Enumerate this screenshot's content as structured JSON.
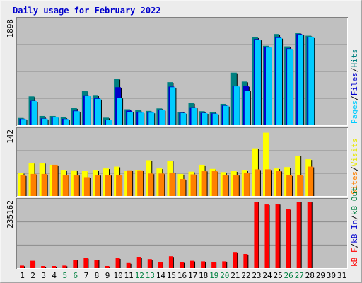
{
  "title": "Daily usage for February 2022",
  "colors": {
    "hits": "#00ccff",
    "files": "#0000cc",
    "pages": "#008080",
    "visits": "#ffff00",
    "sites": "#ff8000",
    "kbytes": "#ff0000",
    "panel_bg": "#c0c0c0",
    "frame_bg": "#ececec",
    "grid": "#8c8c8c",
    "weekend_day": "#008040",
    "weekday_day": "#000000"
  },
  "axis_labels": {
    "hits_max": "1898",
    "visits_max": "142",
    "kbytes_max": "235162"
  },
  "legends": {
    "hits": [
      {
        "text": "Pages",
        "color": "#00ccff"
      },
      {
        "text": "/",
        "color": "#000000"
      },
      {
        "text": "Files",
        "color": "#0000cc"
      },
      {
        "text": "/",
        "color": "#000000"
      },
      {
        "text": "Hits",
        "color": "#008080"
      }
    ],
    "visits": [
      {
        "text": "Sites",
        "color": "#ff8000"
      },
      {
        "text": "/",
        "color": "#000000"
      },
      {
        "text": "Visits",
        "color": "#e6e600"
      }
    ],
    "kbytes": [
      {
        "text": "kB F",
        "color": "#ff0000"
      },
      {
        "text": "/",
        "color": "#000000"
      },
      {
        "text": "kB In",
        "color": "#0000cc"
      },
      {
        "text": "/",
        "color": "#000000"
      },
      {
        "text": "kB Out",
        "color": "#008040"
      }
    ]
  },
  "chart_data": {
    "type": "bar",
    "days": [
      "1",
      "2",
      "3",
      "4",
      "5",
      "6",
      "7",
      "8",
      "9",
      "10",
      "11",
      "12",
      "13",
      "14",
      "15",
      "16",
      "17",
      "18",
      "19",
      "20",
      "21",
      "22",
      "23",
      "24",
      "25",
      "26",
      "27",
      "28",
      "29",
      "30",
      "31"
    ],
    "weekend_days": [
      "5",
      "6",
      "12",
      "13",
      "19",
      "20",
      "26",
      "27"
    ],
    "hits_panel": {
      "ymax": 1898,
      "series": [
        {
          "name": "Hits",
          "color": "#008080",
          "values": [
            130,
            515,
            165,
            165,
            140,
            305,
            610,
            540,
            135,
            830,
            285,
            270,
            255,
            300,
            770,
            240,
            395,
            250,
            240,
            380,
            940,
            780,
            1570,
            1420,
            1630,
            1410,
            1650,
            1600,
            0,
            0,
            0
          ]
        },
        {
          "name": "Files",
          "color": "#0000cc",
          "values": [
            115,
            435,
            120,
            150,
            115,
            260,
            535,
            480,
            100,
            680,
            260,
            230,
            230,
            280,
            690,
            220,
            320,
            220,
            210,
            350,
            700,
            700,
            1540,
            1400,
            1570,
            1375,
            1630,
            1580,
            0,
            0,
            0
          ]
        },
        {
          "name": "Pages",
          "color": "#00ccff",
          "values": [
            110,
            430,
            115,
            145,
            110,
            250,
            530,
            470,
            95,
            490,
            240,
            225,
            225,
            270,
            680,
            215,
            315,
            215,
            205,
            345,
            695,
            620,
            1530,
            1390,
            1560,
            1365,
            1620,
            1570,
            0,
            0,
            0
          ]
        }
      ]
    },
    "visits_panel": {
      "ymax": 142,
      "series": [
        {
          "name": "Visits",
          "color": "#ffff00",
          "values": [
            50,
            72,
            72,
            68,
            57,
            56,
            54,
            57,
            60,
            64,
            55,
            57,
            78,
            60,
            77,
            48,
            53,
            68,
            59,
            52,
            54,
            57,
            104,
            138,
            60,
            63,
            88,
            80,
            0,
            0,
            0
          ]
        },
        {
          "name": "Sites",
          "color": "#ff8000",
          "values": [
            45,
            48,
            48,
            68,
            46,
            46,
            41,
            46,
            46,
            46,
            56,
            56,
            49,
            49,
            51,
            37,
            47,
            55,
            54,
            46,
            46,
            51,
            58,
            58,
            55,
            45,
            45,
            64,
            0,
            0,
            0
          ]
        }
      ]
    },
    "kbytes_panel": {
      "ymax": 235162,
      "series": [
        {
          "name": "kB F",
          "color": "#ff0000",
          "values": [
            9000,
            26000,
            7000,
            7000,
            9000,
            30000,
            36000,
            30000,
            7000,
            35000,
            18000,
            40000,
            32000,
            22000,
            42000,
            21000,
            26000,
            24000,
            22000,
            24000,
            57000,
            50000,
            235162,
            225000,
            227000,
            208000,
            235162,
            235000,
            0,
            0,
            0
          ]
        }
      ]
    }
  }
}
